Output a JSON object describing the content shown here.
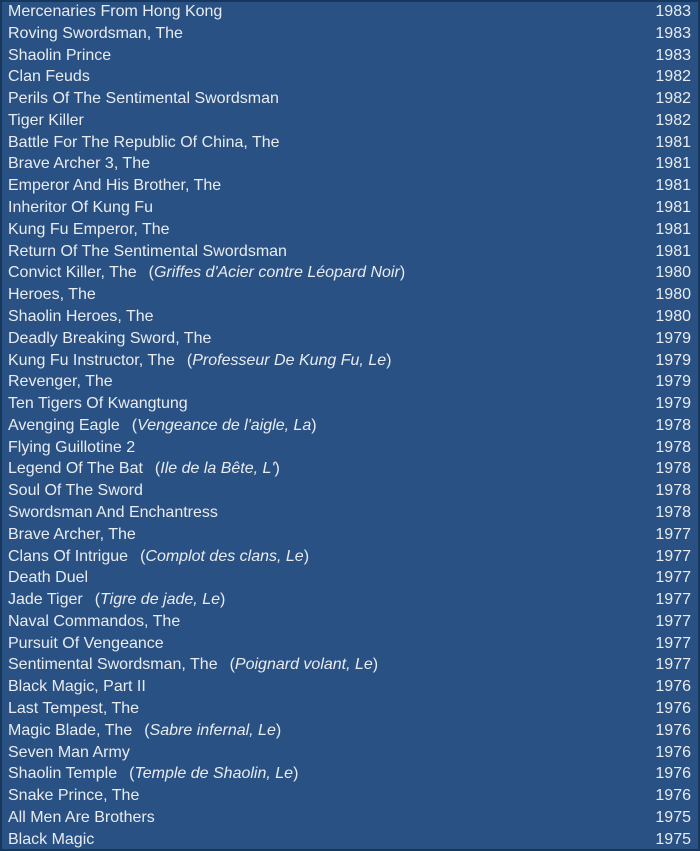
{
  "page": {
    "colors": {
      "background": "#2A5183",
      "border": "#17375C",
      "text": "#E8ECF0"
    },
    "paren_open": "(",
    "paren_close": ")"
  },
  "film_list": {
    "items": [
      {
        "title": "Mercenaries From Hong Kong",
        "alt_title": "",
        "year": "1983"
      },
      {
        "title": "Roving Swordsman, The",
        "alt_title": "",
        "year": "1983"
      },
      {
        "title": "Shaolin Prince",
        "alt_title": "",
        "year": "1983"
      },
      {
        "title": "Clan Feuds",
        "alt_title": "",
        "year": "1982"
      },
      {
        "title": "Perils Of The Sentimental Swordsman",
        "alt_title": "",
        "year": "1982"
      },
      {
        "title": "Tiger Killer",
        "alt_title": "",
        "year": "1982"
      },
      {
        "title": "Battle For The Republic Of China, The",
        "alt_title": "",
        "year": "1981"
      },
      {
        "title": "Brave Archer 3, The",
        "alt_title": "",
        "year": "1981"
      },
      {
        "title": "Emperor And His Brother, The",
        "alt_title": "",
        "year": "1981"
      },
      {
        "title": "Inheritor Of Kung Fu",
        "alt_title": "",
        "year": "1981"
      },
      {
        "title": "Kung Fu Emperor, The",
        "alt_title": "",
        "year": "1981"
      },
      {
        "title": "Return Of The Sentimental Swordsman",
        "alt_title": "",
        "year": "1981"
      },
      {
        "title": "Convict Killer, The",
        "alt_title": "Griffes d'Acier contre Léopard Noir",
        "year": "1980"
      },
      {
        "title": "Heroes, The",
        "alt_title": "",
        "year": "1980"
      },
      {
        "title": "Shaolin Heroes, The",
        "alt_title": "",
        "year": "1980"
      },
      {
        "title": "Deadly Breaking Sword, The",
        "alt_title": "",
        "year": "1979"
      },
      {
        "title": "Kung Fu Instructor, The",
        "alt_title": "Professeur De Kung Fu, Le",
        "year": "1979"
      },
      {
        "title": "Revenger, The",
        "alt_title": "",
        "year": "1979"
      },
      {
        "title": "Ten Tigers Of Kwangtung",
        "alt_title": "",
        "year": "1979"
      },
      {
        "title": "Avenging Eagle",
        "alt_title": "Vengeance de l'aigle, La",
        "year": "1978"
      },
      {
        "title": "Flying Guillotine 2",
        "alt_title": "",
        "year": "1978"
      },
      {
        "title": "Legend Of The Bat",
        "alt_title": "Ile de la Bête, L'",
        "year": "1978"
      },
      {
        "title": "Soul Of The Sword",
        "alt_title": "",
        "year": "1978"
      },
      {
        "title": "Swordsman And Enchantress",
        "alt_title": "",
        "year": "1978"
      },
      {
        "title": "Brave Archer, The",
        "alt_title": "",
        "year": "1977"
      },
      {
        "title": "Clans Of Intrigue",
        "alt_title": "Complot des clans, Le",
        "year": "1977"
      },
      {
        "title": "Death Duel",
        "alt_title": "",
        "year": "1977"
      },
      {
        "title": "Jade Tiger",
        "alt_title": "Tigre de jade, Le",
        "year": "1977"
      },
      {
        "title": "Naval Commandos, The",
        "alt_title": "",
        "year": "1977"
      },
      {
        "title": "Pursuit Of Vengeance",
        "alt_title": "",
        "year": "1977"
      },
      {
        "title": "Sentimental Swordsman, The",
        "alt_title": "Poignard volant, Le",
        "year": "1977"
      },
      {
        "title": "Black Magic, Part II",
        "alt_title": "",
        "year": "1976"
      },
      {
        "title": "Last Tempest, The",
        "alt_title": "",
        "year": "1976"
      },
      {
        "title": "Magic Blade, The",
        "alt_title": "Sabre infernal, Le",
        "year": "1976"
      },
      {
        "title": "Seven Man Army",
        "alt_title": "",
        "year": "1976"
      },
      {
        "title": "Shaolin Temple",
        "alt_title": "Temple de Shaolin, Le",
        "year": "1976"
      },
      {
        "title": "Snake Prince, The",
        "alt_title": "",
        "year": "1976"
      },
      {
        "title": "All Men Are Brothers",
        "alt_title": "",
        "year": "1975"
      },
      {
        "title": "Black Magic",
        "alt_title": "",
        "year": "1975"
      }
    ]
  }
}
